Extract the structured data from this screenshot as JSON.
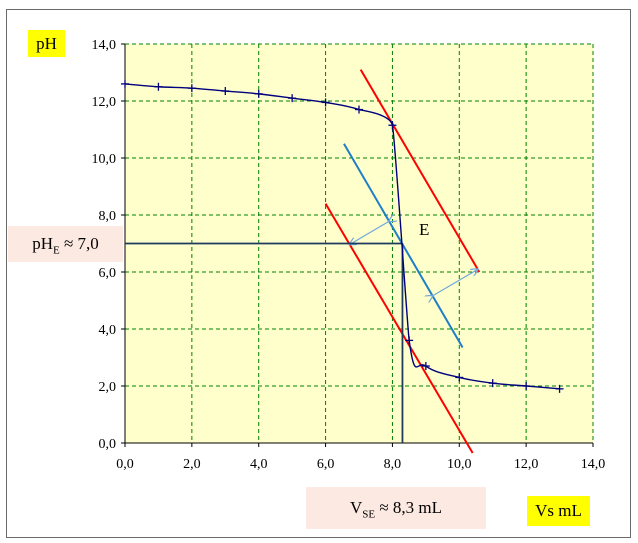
{
  "chart_data": {
    "type": "line",
    "title": "",
    "ylabel": "pH",
    "xlabel": "Vs mL",
    "xlim": [
      0,
      14
    ],
    "ylim": [
      0,
      14
    ],
    "x_ticks": [
      "0,0",
      "2,0",
      "4,0",
      "6,0",
      "8,0",
      "10,0",
      "12,0",
      "14,0"
    ],
    "y_ticks": [
      "0,0",
      "2,0",
      "4,0",
      "6,0",
      "8,0",
      "10,0",
      "12,0",
      "14,0"
    ],
    "grid": true,
    "series": [
      {
        "points": [
          [
            0,
            12.6
          ],
          [
            1,
            12.5
          ],
          [
            2,
            12.45
          ],
          [
            3,
            12.35
          ],
          [
            4,
            12.25
          ],
          [
            5,
            12.1
          ],
          [
            6,
            11.95
          ],
          [
            7,
            11.7
          ],
          [
            8,
            11.15
          ],
          [
            8.5,
            3.6
          ],
          [
            9,
            2.7
          ],
          [
            10,
            2.3
          ],
          [
            11,
            2.1
          ],
          [
            12,
            2.0
          ],
          [
            13,
            1.9
          ]
        ]
      }
    ],
    "tangents": [
      {
        "from": [
          7.05,
          13.1
        ],
        "to": [
          10.6,
          6.0
        ]
      },
      {
        "from": [
          6.0,
          8.4
        ],
        "to": [
          10.4,
          -0.35
        ]
      }
    ],
    "mid_line": {
      "from": [
        6.55,
        10.5
      ],
      "to": [
        10.1,
        3.35
      ]
    },
    "equivalence": {
      "x": 8.3,
      "y": 7.0
    },
    "annotations": {
      "ph_label": "pH",
      "ph_sub": "E",
      "ph_value": " ≈ 7,0",
      "v_label": "V",
      "v_sub": "SE",
      "v_value": " ≈ 8,3 mL",
      "point_label": "E"
    },
    "colors": {
      "plot_bg": "#ffffcc",
      "grid": "#008000",
      "curve": "#00007f",
      "tangent": "#ff0000",
      "mid_line": "#1e7fc8",
      "arrow": "#6fa8dc",
      "guide": "#1f3a5f",
      "label_yellow": "#ffff00",
      "label_pink": "#fbe9e2"
    }
  }
}
